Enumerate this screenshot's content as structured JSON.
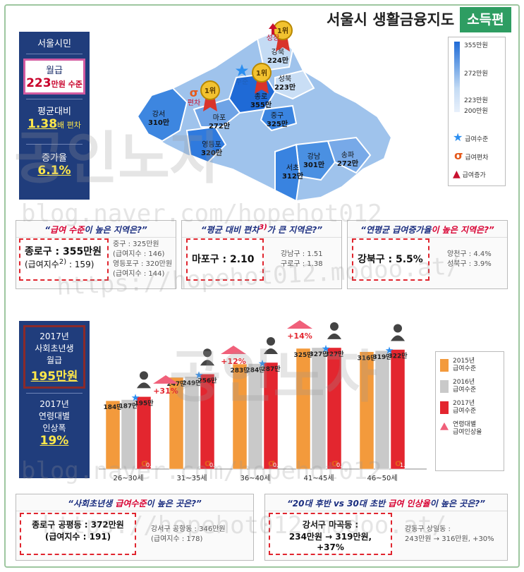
{
  "title": {
    "main": "서울시 생활금융지도",
    "sub": "소득편"
  },
  "watermark": {
    "url1": "blog.naver.com/hopehot012",
    "url2": "https://hopehot012.modoo.at/",
    "brand": "공인노자"
  },
  "citizen_panel": {
    "header": "서울시민",
    "monthly_label": "월급",
    "monthly_value": "223",
    "monthly_unit": "만원 수준",
    "dev_label": "평균대비",
    "dev_value": "1.38",
    "dev_unit": "배 편차",
    "growth_label": "증가율",
    "growth_value": "6.1%"
  },
  "map": {
    "badges": {
      "first": "1위",
      "growth": "성장",
      "level": "수준",
      "deviation": "편차"
    },
    "districts": [
      {
        "name": "강북",
        "value": "224만"
      },
      {
        "name": "성북",
        "value": "223만"
      },
      {
        "name": "종로",
        "value": "355만"
      },
      {
        "name": "중구",
        "value": "325만"
      },
      {
        "name": "마포",
        "value": "272만"
      },
      {
        "name": "강서",
        "value": "310만"
      },
      {
        "name": "영등포",
        "value": "320만"
      },
      {
        "name": "강남",
        "value": "301만"
      },
      {
        "name": "송파",
        "value": "272만"
      },
      {
        "name": "서초",
        "value": "312만"
      }
    ]
  },
  "map_legend": {
    "scale": [
      "355만원",
      "272만원",
      "223만원",
      "200만원"
    ],
    "items": [
      "급여수준",
      "급여편차",
      "급여증가"
    ]
  },
  "cards": [
    {
      "q_pre": "“",
      "q_hl": "급여 수준",
      "q_post": "이 높은 지역은?”",
      "main1": "종로구 : 355만원",
      "main2": "(급여지수",
      "sup": "2)",
      "main3": ": 159)",
      "side": [
        "중구 : 325만원",
        "(급여지수 : 146)",
        "영등포구 : 320만원",
        "(급여지수 : 144)"
      ]
    },
    {
      "q_pre": "“평균 대비 편차",
      "q_hl": "3)",
      "q_post": "가 큰 지역은?”",
      "main1": "마포구 : 2.10",
      "side": [
        "강남구 : 1.51",
        "구로구 : 1.38"
      ]
    },
    {
      "q_pre": "“연평균 급여증가율",
      "q_hl": "",
      "q_post": "이 높은 지역은?”",
      "main1": "강북구 : 5.5%",
      "side": [
        "양천구 : 4.4%",
        "성북구 : 3.9%"
      ]
    }
  ],
  "newhire_panel": {
    "y1": "2017년",
    "l1": "사회초년생",
    "l2": "월급",
    "val": "195만원",
    "y2": "2017년",
    "l3": "연령대별",
    "l4": "인상폭",
    "val2": "19%"
  },
  "chart_data": {
    "type": "bar",
    "categories": [
      "26~30세",
      "31~35세",
      "36~40세",
      "41~45세",
      "46~50세"
    ],
    "series": [
      {
        "name": "2015년 급여수준",
        "values": [
          184,
          247,
          283,
          325,
          316
        ]
      },
      {
        "name": "2016년 급여수준",
        "values": [
          187,
          249,
          284,
          327,
          319
        ]
      },
      {
        "name": "2017년 급여수준",
        "values": [
          195,
          256,
          287,
          327,
          322
        ]
      }
    ],
    "value_labels": [
      [
        "184만",
        "187만",
        "195만"
      ],
      [
        "247만",
        "249만",
        "256만"
      ],
      [
        "283만",
        "284만",
        "287만"
      ],
      [
        "325만",
        "327만",
        "327만"
      ],
      [
        "316만",
        "319만",
        "322만"
      ]
    ],
    "deviation_labels": [
      "0.7배",
      "0.7배",
      "0.8배",
      "0.9배",
      "1.3배"
    ],
    "raise_labels": [
      "+31%",
      "+12%",
      "+14%"
    ],
    "ylim": [
      0,
      380
    ],
    "colors": [
      "#f39a3c",
      "#c9c9c9",
      "#e3262f"
    ],
    "legend": {
      "placement": "right",
      "items": [
        [
          "2015년",
          "급여수준"
        ],
        [
          "2016년",
          "급여수준"
        ],
        [
          "2017년",
          "급여수준"
        ],
        [
          "연령대별",
          "급여인상율"
        ]
      ]
    }
  },
  "bottom_cards": [
    {
      "q_pre": "“사회초년생 ",
      "q_hl": "급여수준",
      "q_post": "이 높은 곳은?”",
      "main1": "종로구 공평동 : 372만원",
      "main2": "(급여지수 : 191)",
      "side": [
        "강서구 공항동 : 346만원",
        "(급여지수 : 178)"
      ]
    },
    {
      "q_pre": "“20대 후반 vs 30대 초반 ",
      "q_hl": "급여 인상율",
      "q_post": "이 높은 곳은?”",
      "main1": "강서구 마곡동 :",
      "main2": "234만원 → 319만원, +37%",
      "side": [
        "강동구 상일동 :",
        "243만원 → 316만원, +30%"
      ]
    }
  ]
}
